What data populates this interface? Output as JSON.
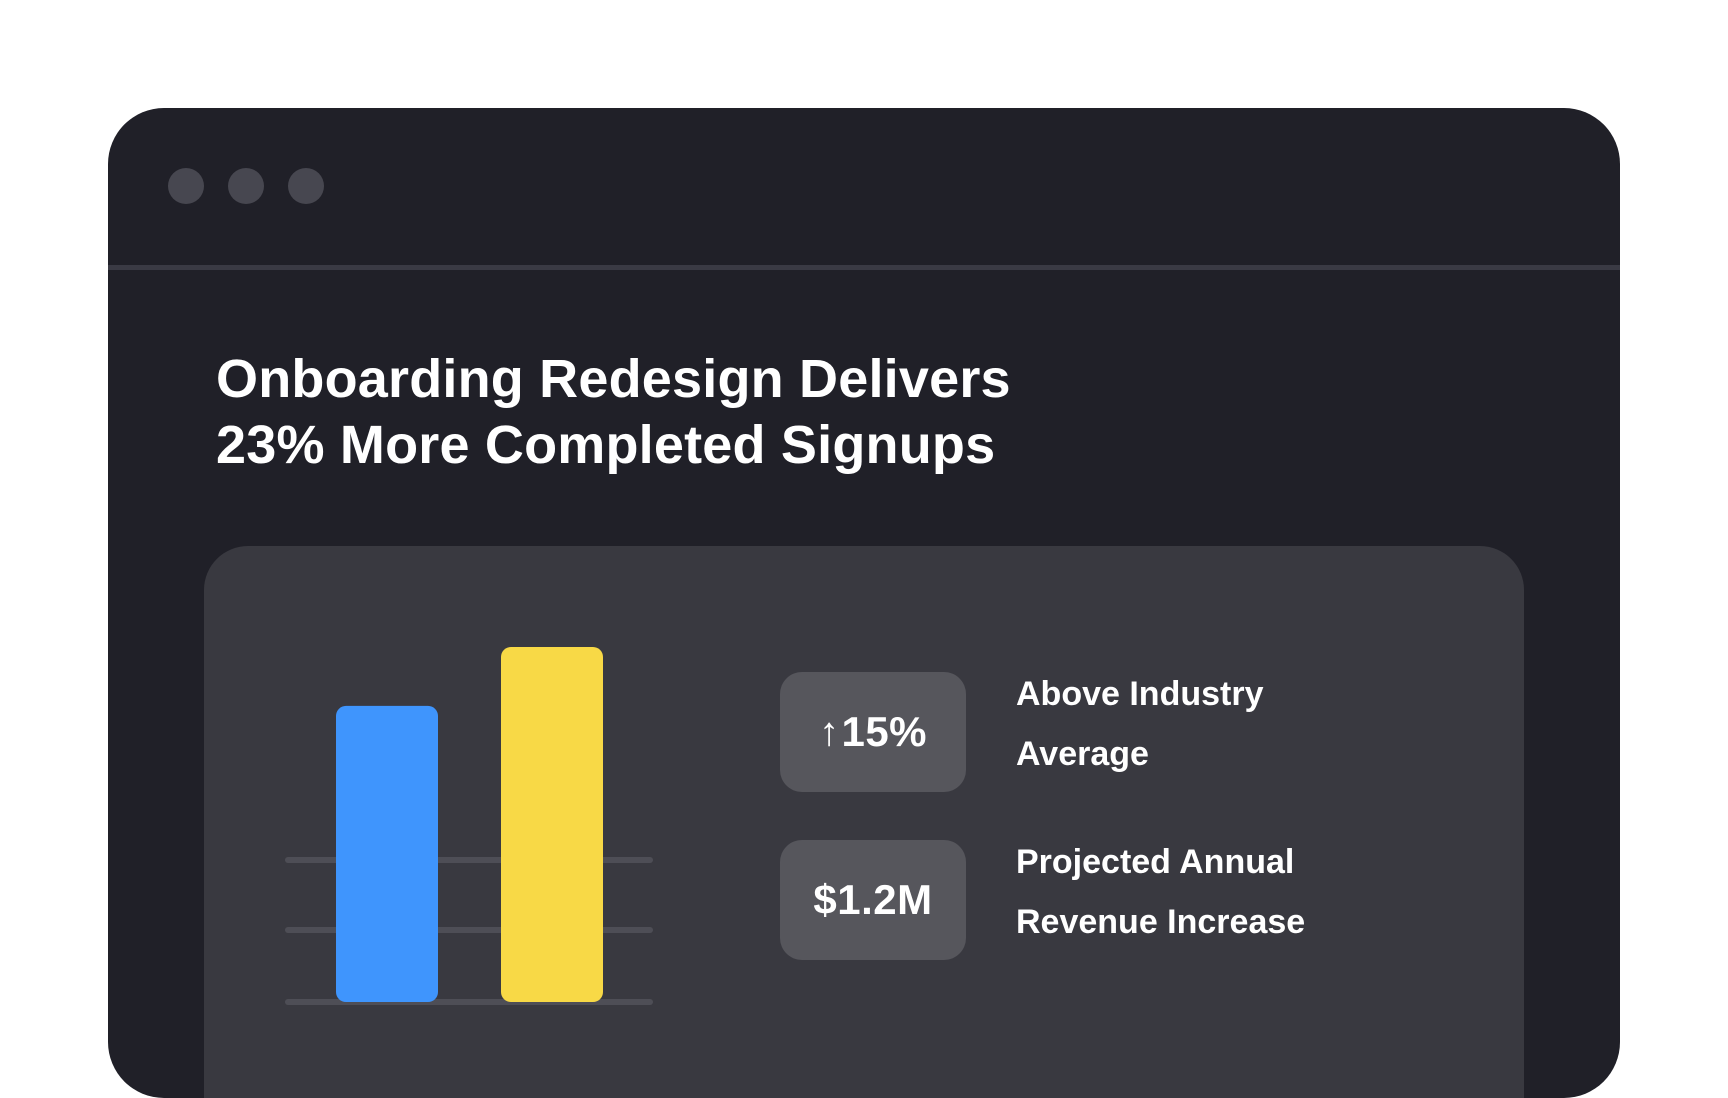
{
  "window": {
    "controls": [
      "window-dot",
      "window-dot",
      "window-dot"
    ]
  },
  "headline": {
    "line1": "Onboarding Redesign Delivers",
    "line2": "23% More Completed Signups"
  },
  "colors": {
    "before_bar": "#3f95fd",
    "after_bar": "#f8d946",
    "gridline": "#4e4e56"
  },
  "chart_data": {
    "type": "bar",
    "categories": [
      "",
      ""
    ],
    "values": [
      100,
      123
    ],
    "title": "",
    "xlabel": "",
    "ylabel": "",
    "ylim": [
      0,
      123
    ],
    "grid": true
  },
  "kpis": [
    {
      "arrow": "↑",
      "value": "15%",
      "label_line1": "Above Industry",
      "label_line2": "Average"
    },
    {
      "value": "$1.2M",
      "label_line1": "Projected Annual",
      "label_line2": "Revenue Increase"
    }
  ]
}
